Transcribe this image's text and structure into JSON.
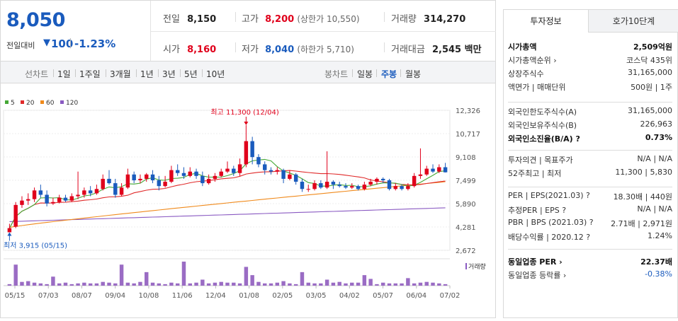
{
  "price": {
    "current": "8,050",
    "change_label": "전일대비",
    "change_arrow": "▼",
    "change_value": "100",
    "change_pct": "-1.23%",
    "down_color": "#1a5bbd",
    "up_color": "#e0001b"
  },
  "quote": {
    "prev_close_label": "전일",
    "prev_close": "8,150",
    "high_label": "고가",
    "high": "8,200",
    "upper_limit": "(상한가 10,550)",
    "volume_label": "거래량",
    "volume": "314,270",
    "open_label": "시가",
    "open": "8,160",
    "low_label": "저가",
    "low": "8,040",
    "lower_limit": "(하한가 5,710)",
    "amount_label": "거래대금",
    "amount": "2,545 백만"
  },
  "period_bar": {
    "line_label": "선차트",
    "line_options": [
      "1일",
      "1주일",
      "3개월",
      "1년",
      "3년",
      "5년",
      "10년"
    ],
    "candle_label": "봉차트",
    "candle_options": [
      "일봉",
      "주봉",
      "월봉"
    ],
    "selected_candle": "주봉"
  },
  "chart_data": {
    "type": "candlestick",
    "title": "",
    "legend": [
      {
        "name": "5",
        "color": "#45a836"
      },
      {
        "name": "20",
        "color": "#e02a2a"
      },
      {
        "name": "60",
        "color": "#f08a1c"
      },
      {
        "name": "120",
        "color": "#8a5ac2"
      }
    ],
    "y_ticks": [
      "12,326",
      "10,717",
      "9,108",
      "7,499",
      "5,890",
      "4,281",
      "2,672"
    ],
    "ylim": [
      2672,
      12326
    ],
    "x_ticks": [
      "05/15",
      "07/03",
      "08/07",
      "09/04",
      "10/08",
      "11/06",
      "12/04",
      "01/08",
      "02/05",
      "03/05",
      "04/02",
      "05/07",
      "06/04",
      "07/02"
    ],
    "high_annotation": "최고 11,300 (12/04)",
    "low_annotation": "최저 3,915 (05/15)",
    "volume_label": "거래량",
    "candles": [
      [
        3915,
        4200,
        3915,
        4500
      ],
      [
        4300,
        5800,
        4200,
        6000
      ],
      [
        5800,
        6100,
        5600,
        6400
      ],
      [
        6100,
        6200,
        5800,
        6600
      ],
      [
        6200,
        6800,
        6000,
        7000
      ],
      [
        6800,
        6500,
        6300,
        7200
      ],
      [
        6500,
        5900,
        5700,
        6800
      ],
      [
        5900,
        6000,
        5800,
        6300
      ],
      [
        6000,
        6300,
        5900,
        6500
      ],
      [
        6300,
        6100,
        6000,
        6500
      ],
      [
        6100,
        6400,
        6000,
        6600
      ],
      [
        6400,
        6500,
        6200,
        8100
      ],
      [
        6500,
        6800,
        6300,
        7000
      ],
      [
        6800,
        6600,
        6400,
        7100
      ],
      [
        6600,
        6900,
        6500,
        7200
      ],
      [
        6900,
        7600,
        6800,
        7900
      ],
      [
        7600,
        7300,
        7200,
        8200
      ],
      [
        7300,
        6500,
        6300,
        7600
      ],
      [
        6500,
        7000,
        6400,
        7300
      ],
      [
        7000,
        7900,
        6900,
        8300
      ],
      [
        7900,
        7500,
        7300,
        8100
      ],
      [
        7500,
        7600,
        7300,
        7900
      ],
      [
        7600,
        7900,
        7400,
        8000
      ],
      [
        7900,
        7500,
        7300,
        8200
      ],
      [
        7500,
        7100,
        6800,
        7800
      ],
      [
        7100,
        7400,
        7000,
        7800
      ],
      [
        7400,
        8200,
        7300,
        8500
      ],
      [
        8200,
        8000,
        7800,
        8600
      ],
      [
        8000,
        7800,
        7600,
        8400
      ],
      [
        7800,
        8100,
        7700,
        8400
      ],
      [
        8100,
        7800,
        7600,
        8300
      ],
      [
        7800,
        7300,
        7100,
        8100
      ],
      [
        7300,
        7600,
        7200,
        7900
      ],
      [
        7600,
        7800,
        7400,
        8000
      ],
      [
        7800,
        8100,
        7700,
        8300
      ],
      [
        8100,
        8300,
        8000,
        8800
      ],
      [
        8300,
        8000,
        7800,
        8500
      ],
      [
        8000,
        8600,
        7800,
        9000
      ],
      [
        8600,
        10200,
        8400,
        11300
      ],
      [
        10200,
        9100,
        8600,
        10500
      ],
      [
        9100,
        8600,
        8400,
        9300
      ],
      [
        8600,
        8200,
        7900,
        8800
      ],
      [
        8200,
        8100,
        7900,
        8400
      ],
      [
        8100,
        8200,
        7900,
        8400
      ],
      [
        8200,
        7600,
        7300,
        8300
      ],
      [
        7600,
        7900,
        7500,
        8200
      ],
      [
        7900,
        7400,
        7200,
        8000
      ],
      [
        7400,
        6900,
        6700,
        7600
      ],
      [
        6900,
        6900,
        6700,
        7200
      ],
      [
        6900,
        7300,
        6800,
        7500
      ],
      [
        7300,
        7000,
        6900,
        7500
      ],
      [
        7000,
        7400,
        6900,
        9500
      ],
      [
        7400,
        7200,
        6900,
        7500
      ],
      [
        7200,
        7100,
        7000,
        7400
      ],
      [
        7100,
        7000,
        6900,
        7300
      ],
      [
        7000,
        7100,
        6900,
        7300
      ],
      [
        7100,
        6900,
        6800,
        7200
      ],
      [
        6900,
        7200,
        6800,
        7400
      ],
      [
        7200,
        7400,
        7100,
        7600
      ],
      [
        7400,
        7600,
        7200,
        7700
      ],
      [
        7600,
        7500,
        7300,
        7700
      ],
      [
        7500,
        6900,
        6800,
        7600
      ],
      [
        6900,
        7100,
        6800,
        7300
      ],
      [
        7100,
        6900,
        6800,
        7200
      ],
      [
        6900,
        7100,
        6800,
        7300
      ],
      [
        7100,
        7800,
        7000,
        8000
      ],
      [
        7800,
        7900,
        7600,
        9700
      ],
      [
        7900,
        8300,
        7800,
        8500
      ],
      [
        8300,
        8100,
        8000,
        8600
      ],
      [
        8100,
        8400,
        8000,
        8600
      ],
      [
        8400,
        8050,
        8040,
        8700
      ]
    ],
    "volumes": [
      2,
      28,
      5,
      6,
      4,
      3,
      2,
      12,
      3,
      4,
      2,
      3,
      4,
      3,
      3,
      5,
      4,
      3,
      28,
      4,
      3,
      5,
      18,
      4,
      3,
      2,
      4,
      3,
      32,
      3,
      4,
      8,
      3,
      4,
      5,
      4,
      4,
      3,
      25,
      14,
      5,
      3,
      3,
      4,
      6,
      3,
      2,
      18,
      4,
      3,
      3,
      8,
      4,
      5,
      3,
      4,
      4,
      14,
      9,
      2,
      4,
      3,
      3,
      3,
      10,
      3,
      4,
      5,
      4,
      3,
      2
    ],
    "ma5_color": "#45a836",
    "ma20_color": "#e02a2a",
    "ma60_color": "#f08a1c",
    "ma120_color": "#8a5ac2"
  },
  "invest": {
    "tab_invest": "투자정보",
    "tab_hoga": "호가10단계",
    "rows1": [
      {
        "label": "시가총액",
        "value": "2,509억원",
        "bold": true
      },
      {
        "label": "시가총액순위 ›",
        "value": "코스닥 435위"
      },
      {
        "label": "상장주식수",
        "value": "31,165,000"
      },
      {
        "label": "액면가 | 매매단위",
        "value": "500원 | 1주"
      }
    ],
    "rows2": [
      {
        "label": "외국인한도주식수(A)",
        "value": "31,165,000"
      },
      {
        "label": "외국인보유주식수(B)",
        "value": "226,963"
      },
      {
        "label": "외국인소진율(B/A) ?",
        "value": "0.73%",
        "bold": true
      }
    ],
    "rows3": [
      {
        "label": "투자의견 | 목표주가",
        "value": "N/A | N/A"
      },
      {
        "label": "52주최고 | 최저",
        "value": "11,300 | 5,830"
      }
    ],
    "rows4": [
      {
        "label": "PER | EPS(2021.03) ?",
        "value": "18.30배 | 440원"
      },
      {
        "label": "추정PER | EPS ?",
        "value": "N/A | N/A"
      },
      {
        "label": "PBR | BPS (2021.03) ?",
        "value": "2.71배 | 2,971원"
      },
      {
        "label": "배당수익률 | 2020.12 ?",
        "value": "1.24%"
      }
    ],
    "rows5": [
      {
        "label": "동일업종 PER ›",
        "value": "22.37배",
        "bold": true
      },
      {
        "label": "동일업종 등락률 ›",
        "value": "-0.38%",
        "blue": true
      }
    ]
  }
}
